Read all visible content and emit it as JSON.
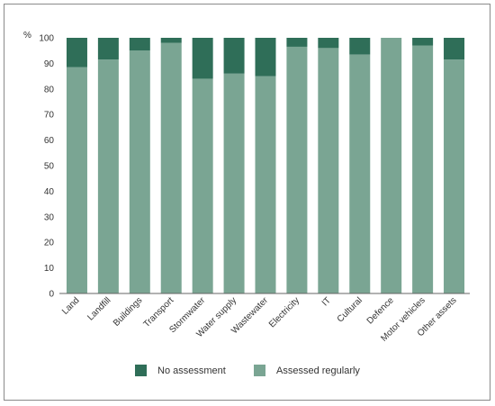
{
  "chart_data": {
    "type": "bar",
    "stacked": true,
    "y_unit": "%",
    "ylim": [
      0,
      100
    ],
    "yticks": [
      0,
      10,
      20,
      30,
      40,
      50,
      60,
      70,
      80,
      90,
      100
    ],
    "grid": false,
    "legend_position": "bottom",
    "categories": [
      "Land",
      "Landfill",
      "Buildings",
      "Transport",
      "Stormwater",
      "Water supply",
      "Wastewater",
      "Electricity",
      "IT",
      "Cultural",
      "Defence",
      "Motor vehicles",
      "Other assets"
    ],
    "series": [
      {
        "name": "Assessed regularly",
        "color": "#7aa593",
        "values": [
          88.5,
          91.5,
          95,
          98,
          84,
          86,
          85,
          96.5,
          96,
          93.5,
          100,
          97,
          91.5
        ]
      },
      {
        "name": "No assessment",
        "color": "#2f6e58",
        "values": [
          11.5,
          8.5,
          5,
          2,
          16,
          14,
          15,
          3.5,
          4,
          6.5,
          0,
          3,
          8.5
        ]
      }
    ]
  }
}
